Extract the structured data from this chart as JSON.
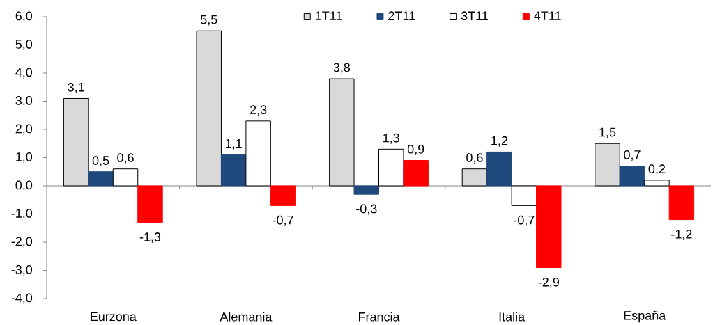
{
  "chart_data": {
    "type": "bar",
    "categories": [
      "Eurzona",
      "Alemania",
      "Francia",
      "Italia",
      "España"
    ],
    "series": [
      {
        "name": "1T11",
        "color": "#d9d9d9",
        "values": [
          3.1,
          5.5,
          3.8,
          0.6,
          1.5
        ],
        "value_labels": [
          "3,1",
          "5,5",
          "3,8",
          "0,6",
          "1,5"
        ]
      },
      {
        "name": "2T11",
        "color": "#1f497d",
        "values": [
          0.5,
          1.1,
          -0.3,
          1.2,
          0.7
        ],
        "value_labels": [
          "0,5",
          "1,1",
          "-0,3",
          "1,2",
          "0,7"
        ]
      },
      {
        "name": "3T11",
        "color": "#ffffff",
        "values": [
          0.6,
          2.3,
          1.3,
          -0.7,
          0.2
        ],
        "value_labels": [
          "0,6",
          "2,3",
          "1,3",
          "-0,7",
          "0,2"
        ]
      },
      {
        "name": "4T11",
        "color": "#ff0000",
        "values": [
          -1.3,
          -0.7,
          0.9,
          -2.9,
          -1.2
        ],
        "value_labels": [
          "-1,3",
          "-0,7",
          "0,9",
          "-2,9",
          "-1,2"
        ]
      }
    ],
    "ylim": [
      -4,
      6
    ],
    "yticks": [
      {
        "value": -4,
        "label": "-4,0"
      },
      {
        "value": -3,
        "label": "-3,0"
      },
      {
        "value": -2,
        "label": "-2,0"
      },
      {
        "value": -1,
        "label": "-1,0"
      },
      {
        "value": 0,
        "label": "0,0"
      },
      {
        "value": 1,
        "label": "1,0"
      },
      {
        "value": 2,
        "label": "2,0"
      },
      {
        "value": 3,
        "label": "3,0"
      },
      {
        "value": 4,
        "label": "4,0"
      },
      {
        "value": 5,
        "label": "5,0"
      },
      {
        "value": 6,
        "label": "6,0"
      }
    ],
    "legend": "top"
  }
}
